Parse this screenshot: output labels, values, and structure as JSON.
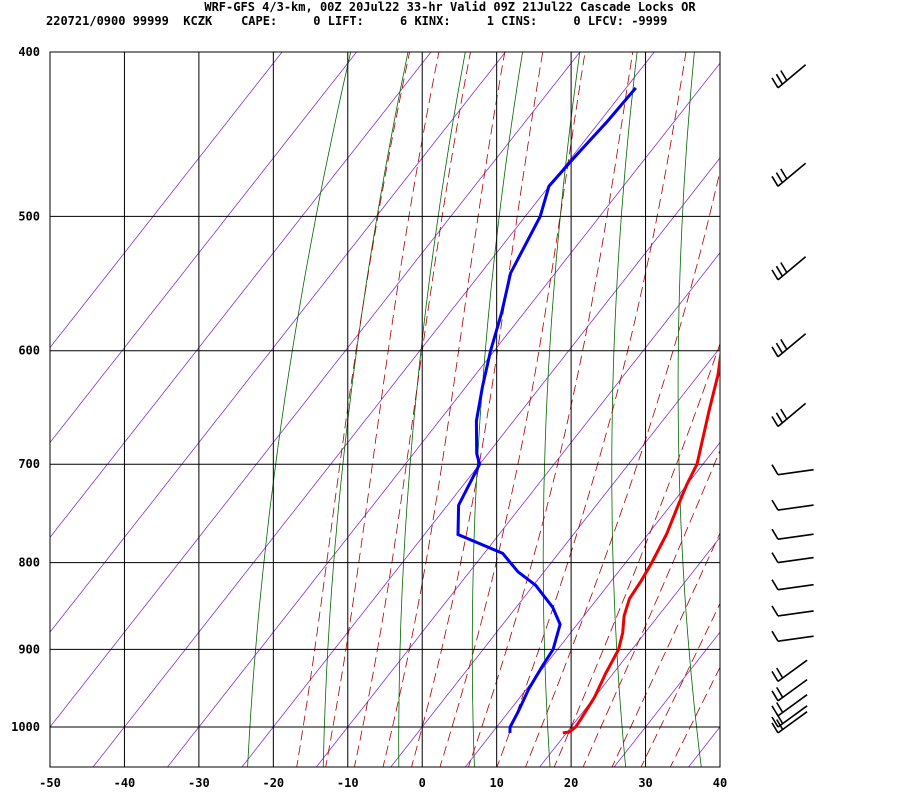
{
  "header": {
    "line1": "WRF-GFS 4/3-km, 00Z 20Jul22 33-hr Valid 09Z 21Jul22 Cascade Locks OR",
    "line2": "220721/0900 99999  KCZK    CAPE:     0 LIFT:     6 KINX:     1 CINS:     0 LFCV: -9999"
  },
  "colors": {
    "temperature": "#ee0000",
    "dewpoint": "#0000ee",
    "dry_adiabat": "#006600",
    "moist_adiabat": "#aa0000",
    "isotherm_skew": "#8833cc",
    "grid": "#000000",
    "barb": "#000000"
  },
  "chart_data": {
    "type": "line",
    "subtype": "skew-T log-P sounding",
    "x_range": [
      -50,
      40
    ],
    "y_range_hPa": [
      400,
      1040
    ],
    "y_log_scale": true,
    "x_ticks": [
      "-50",
      "-40",
      "-30",
      "-20",
      "-10",
      "0",
      "10",
      "20",
      "30",
      "40"
    ],
    "y_ticks": [
      "400",
      "500",
      "600",
      "700",
      "800",
      "900",
      "1000"
    ],
    "grid": true,
    "series": [
      {
        "points": [
          [
            1008,
            19.5
          ],
          [
            1007,
            20.3
          ],
          [
            1000,
            20.6
          ],
          [
            990,
            20.5
          ],
          [
            960,
            20.0
          ],
          [
            930,
            19.0
          ],
          [
            900,
            18.2
          ],
          [
            880,
            17.0
          ],
          [
            860,
            15.4
          ],
          [
            840,
            14.3
          ],
          [
            820,
            14.0
          ],
          [
            800,
            13.5
          ],
          [
            770,
            12.5
          ],
          [
            740,
            11.0
          ],
          [
            720,
            10.0
          ],
          [
            700,
            9.2
          ],
          [
            680,
            7.6
          ],
          [
            650,
            5.1
          ],
          [
            620,
            2.6
          ],
          [
            600,
            0.5
          ],
          [
            580,
            -1.1
          ],
          [
            550,
            -3.8
          ],
          [
            520,
            -6.7
          ],
          [
            500,
            -9.4
          ],
          [
            470,
            -12.4
          ],
          [
            440,
            -15.6
          ],
          [
            420,
            -18.7
          ]
        ]
      },
      {
        "points": [
          [
            1008,
            12.4
          ],
          [
            1000,
            11.8
          ],
          [
            980,
            11.3
          ],
          [
            950,
            10.3
          ],
          [
            920,
            9.7
          ],
          [
            900,
            9.4
          ],
          [
            870,
            7.7
          ],
          [
            850,
            4.9
          ],
          [
            825,
            0.3
          ],
          [
            810,
            -3.5
          ],
          [
            790,
            -7.5
          ],
          [
            770,
            -15.5
          ],
          [
            740,
            -18.5
          ],
          [
            700,
            -20.0
          ],
          [
            690,
            -21.5
          ],
          [
            660,
            -25.0
          ],
          [
            630,
            -27.8
          ],
          [
            600,
            -30.5
          ],
          [
            570,
            -33.0
          ],
          [
            540,
            -36.0
          ],
          [
            500,
            -38.0
          ],
          [
            480,
            -40.0
          ],
          [
            460,
            -39.6
          ],
          [
            440,
            -39.0
          ],
          [
            420,
            -38.7
          ]
        ]
      }
    ],
    "wind_barbs_hPa": [
      420,
      480,
      545,
      605,
      665,
      710,
      745,
      775,
      800,
      830,
      860,
      890,
      940,
      965,
      985,
      1000,
      1008
    ]
  }
}
